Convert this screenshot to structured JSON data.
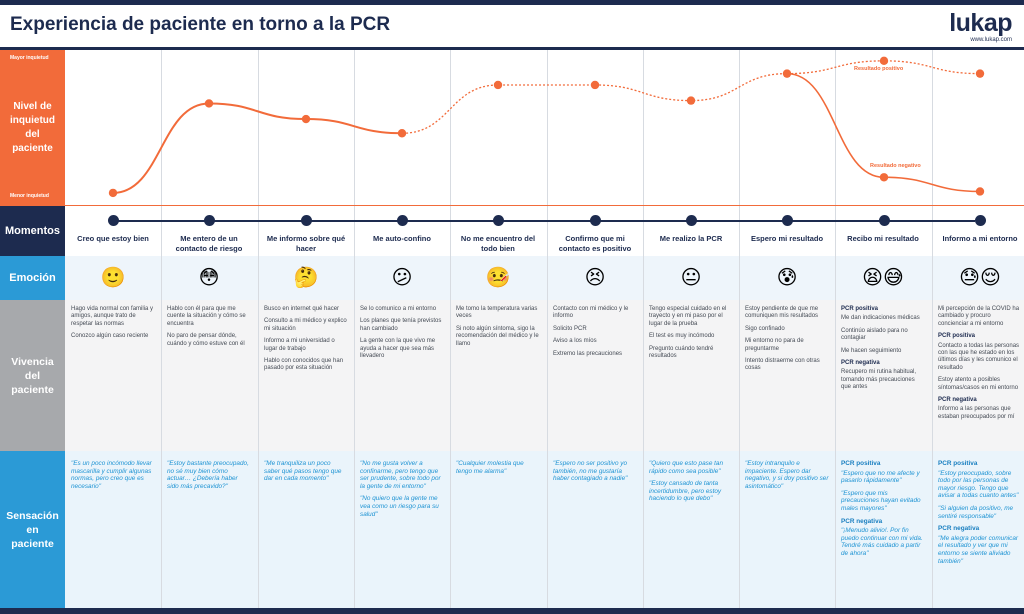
{
  "header": {
    "title": "Experiencia de paciente en torno a la PCR",
    "logo_text": "lukap",
    "logo_url": "www.lukap.com"
  },
  "rows": {
    "nivel": "Nivel de inquietud del paciente",
    "scale_top": "Mayor inquietud",
    "scale_bottom": "Menor inquietud",
    "momentos": "Momentos",
    "emocion": "Emoción",
    "vivencia": "Vivencia del paciente",
    "sensacion": "Sensación en paciente"
  },
  "curve_labels": {
    "positivo": "Resultado positivo",
    "negativo": "Resultado negativo"
  },
  "colors": {
    "navy": "#1d2b4f",
    "orange": "#f26b3a",
    "blue": "#2b9ad6",
    "grey": "#a7a9ac"
  },
  "chart_data": {
    "type": "line",
    "x": [
      1,
      2,
      3,
      4,
      5,
      6,
      7,
      8,
      9,
      10
    ],
    "ylabel": "Nivel de inquietud del paciente",
    "series": [
      {
        "name": "Resultado positivo",
        "values": [
          0.05,
          0.68,
          0.57,
          0.47,
          0.81,
          0.81,
          0.7,
          0.89,
          0.98,
          0.89
        ]
      },
      {
        "name": "Resultado negativo",
        "values": [
          null,
          null,
          null,
          null,
          null,
          null,
          null,
          0.89,
          0.16,
          0.06
        ]
      }
    ],
    "ylim": [
      0,
      1
    ]
  },
  "columns": [
    {
      "momento": "Creo que estoy bien",
      "emoji": "🙂",
      "emoji_name": "smile",
      "vivencia": [
        {
          "text": "Hago vida normal con familia y amigos, aunque trato de respetar las normas"
        },
        {
          "text": "Conozco algún caso reciente"
        }
      ],
      "sensacion": [
        {
          "text": "\"Es un poco incómodo llevar mascarilla y cumplir algunas normas, pero creo que es necesario\""
        }
      ]
    },
    {
      "momento": "Me entero de un contacto de riesgo",
      "emoji": "😳",
      "emoji_name": "flushed",
      "vivencia": [
        {
          "text": "Hablo con él para que me cuente la situación y cómo se encuentra"
        },
        {
          "text": "No paro de pensar dónde, cuándo y cómo estuve con él"
        }
      ],
      "sensacion": [
        {
          "text": "\"Estoy bastante preocupado, no sé muy bien cómo actuar… ¿Debería haber sido más precavido?\""
        }
      ]
    },
    {
      "momento": "Me informo sobre qué hacer",
      "emoji": "🤔",
      "emoji_name": "thinking",
      "vivencia": [
        {
          "text": "Busco en internet qué hacer"
        },
        {
          "text": "Consulto a mi médico y explico mi situación"
        },
        {
          "text": "Informo a mi universidad o lugar de trabajo"
        },
        {
          "text": "Hablo con conocidos que han pasado por esta situación"
        }
      ],
      "sensacion": [
        {
          "text": "\"Me tranquiliza un poco saber qué pasos tengo que dar en cada momento\""
        }
      ]
    },
    {
      "momento": "Me auto-confino",
      "emoji": "😕",
      "emoji_name": "confused",
      "vivencia": [
        {
          "text": "Se lo comunico a mi entorno"
        },
        {
          "text": "Los planes que tenía previstos han cambiado"
        },
        {
          "text": "La gente con la que vivo me ayuda a hacer que sea más llevadero"
        }
      ],
      "sensacion": [
        {
          "text": "\"No me gusta volver a confinarme, pero tengo que ser prudente, sobre todo por la gente de mi entorno\""
        },
        {
          "text": "\"No quiero que la gente me vea como un riesgo para su salud\""
        }
      ]
    },
    {
      "momento": "No me encuentro del todo bien",
      "emoji": "🤒",
      "emoji_name": "feverish",
      "vivencia": [
        {
          "text": "Me tomo la temperatura varias veces"
        },
        {
          "text": "Si noto algún síntoma, sigo la recomendación del médico y le llamo"
        }
      ],
      "sensacion": [
        {
          "text": "\"Cualquier molestia que tengo me alarma\""
        }
      ]
    },
    {
      "momento": "Confirmo que mi contacto es positivo",
      "emoji": "😣",
      "emoji_name": "persevering",
      "vivencia": [
        {
          "text": "Contacto con mi médico y le informo"
        },
        {
          "text": "Solicito PCR"
        },
        {
          "text": "Aviso a los míos"
        },
        {
          "text": "Extremo las precauciones"
        }
      ],
      "sensacion": [
        {
          "text": "\"Espero no ser positivo yo también, no me gustaría haber contagiado a nadie\""
        }
      ]
    },
    {
      "momento": "Me realizo la PCR",
      "emoji": "😐",
      "emoji_name": "neutral",
      "vivencia": [
        {
          "text": "Tengo especial cuidado en el trayecto y en mi paso por el lugar de la prueba"
        },
        {
          "text": "El test es muy incómodo"
        },
        {
          "text": "Pregunto cuándo tendré resultados"
        }
      ],
      "sensacion": [
        {
          "text": "\"Quiero que esto pase tan rápido como sea posible\""
        },
        {
          "text": "\"Estoy cansado de tanta incertidumbre, pero estoy haciendo lo que debo\""
        }
      ]
    },
    {
      "momento": "Espero mi resultado",
      "emoji": "😰",
      "emoji_name": "anxious",
      "vivencia": [
        {
          "text": "Estoy pendiente de que me comuniquen mis resultados"
        },
        {
          "text": "Sigo confinado"
        },
        {
          "text": "Mi entorno no para de preguntarme"
        },
        {
          "text": "Intento distraerme con otras cosas"
        }
      ],
      "sensacion": [
        {
          "text": "\"Estoy intranquilo e impaciente. Espero dar negativo, y si doy positivo ser asintomático\""
        }
      ]
    },
    {
      "momento": "Recibo mi resultado",
      "emoji": "😫😅",
      "emoji_name": "tired-and-relieved",
      "vivencia": [
        {
          "sub": "PCR positiva"
        },
        {
          "text": "Me dan indicaciones médicas"
        },
        {
          "text": "Continúo aislado para no contagiar"
        },
        {
          "text": "Me hacen seguimiento"
        },
        {
          "sub": "PCR negativa"
        },
        {
          "text": "Recupero mi rutina habitual, tomando más precauciones que antes"
        }
      ],
      "sensacion": [
        {
          "sub": "PCR positiva"
        },
        {
          "text": "\"Espero que no me afecte y pasarlo rápidamente\""
        },
        {
          "text": "\"Espero que mis precauciones hayan evitado males mayores\""
        },
        {
          "sub": "PCR negativa"
        },
        {
          "text": "\"¡Menudo alivio!. Por fin puedo continuar con mi vida. Tendré más cuidado a partir de ahora\""
        }
      ]
    },
    {
      "momento": "Informo a mi entorno",
      "emoji": "😓😌",
      "emoji_name": "worried-and-relieved",
      "vivencia": [
        {
          "text": "Mi percepción de la COVID ha cambiado y procuro concienciar a mi entorno"
        },
        {
          "sub": "PCR positiva"
        },
        {
          "text": "Contacto a todas las personas con las que he estado en los últimos días y les comunico el resultado"
        },
        {
          "text": "Estoy atento a posibles síntomas/casos en mi entorno"
        },
        {
          "sub": "PCR negativa"
        },
        {
          "text": "Informo a las personas que estaban preocupados por mí"
        }
      ],
      "sensacion": [
        {
          "sub": "PCR positiva"
        },
        {
          "text": "\"Estoy preocupado, sobre todo por las personas de mayor riesgo. Tengo que avisar a todas cuanto antes\""
        },
        {
          "text": "\"Si alguien da positivo, me sentiré responsable\""
        },
        {
          "sub": "PCR negativa"
        },
        {
          "text": "\"Me alegra poder comunicar el resultado y ver que mi entorno se siente aliviado también\""
        }
      ]
    }
  ]
}
